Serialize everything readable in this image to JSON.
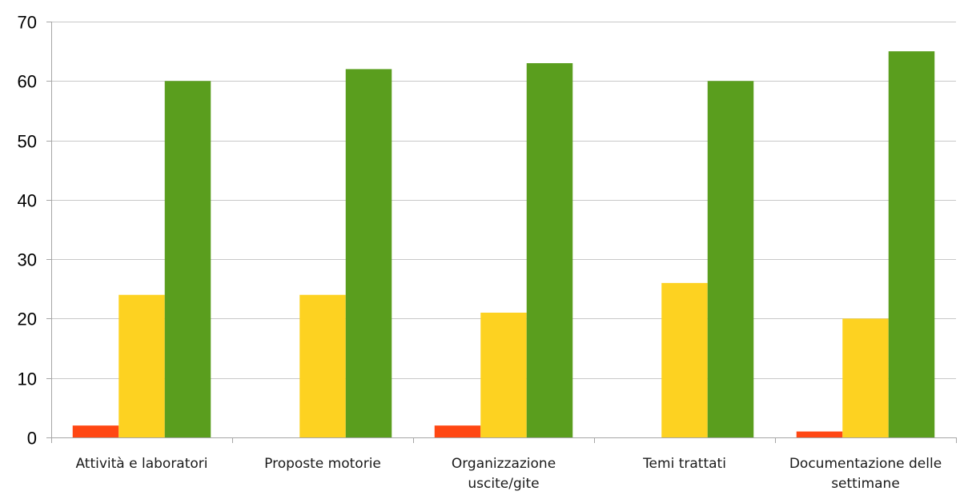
{
  "chart_data": {
    "type": "bar",
    "categories": [
      [
        "Attività e laboratori"
      ],
      [
        "Proposte motorie"
      ],
      [
        "Organizzazione",
        "uscite/gite"
      ],
      [
        "Temi trattati"
      ],
      [
        "Documentazione delle",
        "settimane"
      ]
    ],
    "series": [
      {
        "color": "#ff4713",
        "values": [
          2,
          0,
          2,
          0,
          1
        ]
      },
      {
        "color": "#fdd221",
        "values": [
          24,
          24,
          21,
          26,
          20
        ]
      },
      {
        "color": "#5a9e1e",
        "values": [
          60,
          62,
          63,
          60,
          65
        ]
      }
    ],
    "ylim": [
      0,
      70
    ],
    "yticks": [
      0,
      10,
      20,
      30,
      40,
      50,
      60,
      70
    ],
    "grid": true,
    "legend": "none"
  }
}
